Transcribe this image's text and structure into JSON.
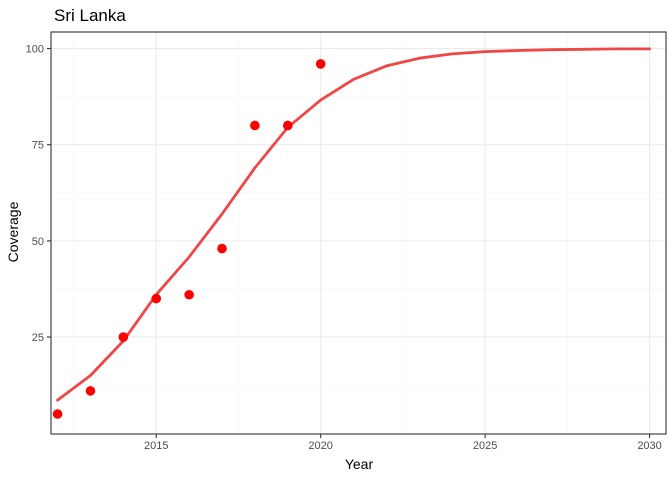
{
  "chart_data": {
    "type": "line",
    "title": "Sri Lanka",
    "xlabel": "Year",
    "ylabel": "Coverage",
    "xlim": [
      2011.8,
      2030.5
    ],
    "ylim": [
      -0.2,
      104.3
    ],
    "x_ticks": [
      2015,
      2020,
      2025,
      2030
    ],
    "y_ticks": [
      25,
      50,
      75,
      100
    ],
    "x_minor": [
      2012.5,
      2017.5,
      2022.5,
      2027.5
    ],
    "y_minor": [
      12.5,
      37.5,
      62.5,
      87.5
    ],
    "grid": true,
    "colors": {
      "line": "#f04646",
      "points": "#ff0000",
      "panel_border": "#333333",
      "grid_major": "#ebebeb",
      "grid_minor": "#f5f5f5"
    },
    "series": [
      {
        "kind": "line",
        "x": [
          2012,
          2013,
          2014,
          2015,
          2016,
          2017,
          2018,
          2019,
          2020,
          2021,
          2022,
          2023,
          2024,
          2025,
          2026,
          2027,
          2028,
          2029,
          2030
        ],
        "values": [
          8.6,
          15.0,
          24.0,
          36.0,
          45.8,
          57.0,
          69.0,
          79.5,
          86.6,
          92.0,
          95.5,
          97.5,
          98.6,
          99.2,
          99.5,
          99.7,
          99.8,
          99.9,
          99.9
        ]
      },
      {
        "kind": "scatter",
        "x": [
          2012,
          2013,
          2014,
          2015,
          2016,
          2017,
          2018,
          2019,
          2020
        ],
        "values": [
          5,
          11,
          25,
          35,
          36,
          48,
          80,
          80,
          96
        ]
      }
    ]
  }
}
